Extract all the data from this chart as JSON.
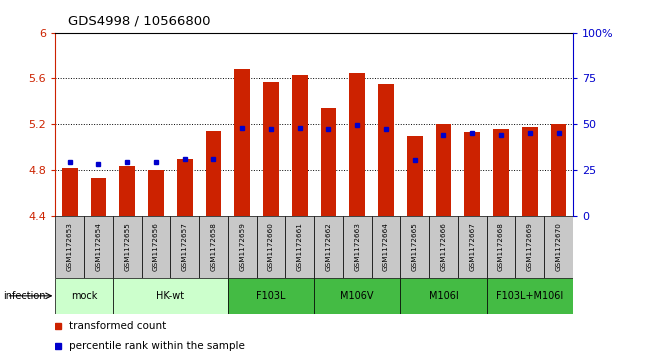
{
  "title": "GDS4998 / 10566800",
  "samples": [
    "GSM1172653",
    "GSM1172654",
    "GSM1172655",
    "GSM1172656",
    "GSM1172657",
    "GSM1172658",
    "GSM1172659",
    "GSM1172660",
    "GSM1172661",
    "GSM1172662",
    "GSM1172663",
    "GSM1172664",
    "GSM1172665",
    "GSM1172666",
    "GSM1172667",
    "GSM1172668",
    "GSM1172669",
    "GSM1172670"
  ],
  "bar_values": [
    4.82,
    4.73,
    4.84,
    4.8,
    4.9,
    5.14,
    5.68,
    5.57,
    5.63,
    5.34,
    5.65,
    5.55,
    5.1,
    5.2,
    5.13,
    5.16,
    5.18,
    5.2
  ],
  "percentile_values": [
    4.87,
    4.85,
    4.87,
    4.87,
    4.9,
    4.9,
    5.17,
    5.16,
    5.17,
    5.16,
    5.19,
    5.16,
    4.89,
    5.11,
    5.12,
    5.11,
    5.12,
    5.12
  ],
  "ylim": [
    4.4,
    6.0
  ],
  "yticks": [
    4.4,
    4.8,
    5.2,
    5.6,
    6.0
  ],
  "ytick_labels": [
    "4.4",
    "4.8",
    "5.2",
    "5.6",
    "6"
  ],
  "right_yticks": [
    0,
    25,
    50,
    75,
    100
  ],
  "right_ytick_labels": [
    "0",
    "25",
    "50",
    "75",
    "100%"
  ],
  "bar_color": "#cc2200",
  "percentile_color": "#0000cc",
  "group_data": [
    {
      "label": "mock",
      "indices": [
        0,
        1
      ],
      "color": "#ccffcc"
    },
    {
      "label": "HK-wt",
      "indices": [
        2,
        3,
        4,
        5
      ],
      "color": "#ccffcc"
    },
    {
      "label": "F103L",
      "indices": [
        6,
        7,
        8
      ],
      "color": "#44bb44"
    },
    {
      "label": "M106V",
      "indices": [
        9,
        10,
        11
      ],
      "color": "#44bb44"
    },
    {
      "label": "M106I",
      "indices": [
        12,
        13,
        14
      ],
      "color": "#44bb44"
    },
    {
      "label": "F103L+M106I",
      "indices": [
        15,
        16,
        17
      ],
      "color": "#44bb44"
    }
  ],
  "legend": [
    {
      "label": "transformed count",
      "color": "#cc2200"
    },
    {
      "label": "percentile rank within the sample",
      "color": "#0000cc"
    }
  ],
  "bar_width": 0.55,
  "tick_label_color_left": "#cc2200",
  "tick_label_color_right": "#0000cc",
  "sample_box_color": "#c8c8c8",
  "infection_label": "infection"
}
